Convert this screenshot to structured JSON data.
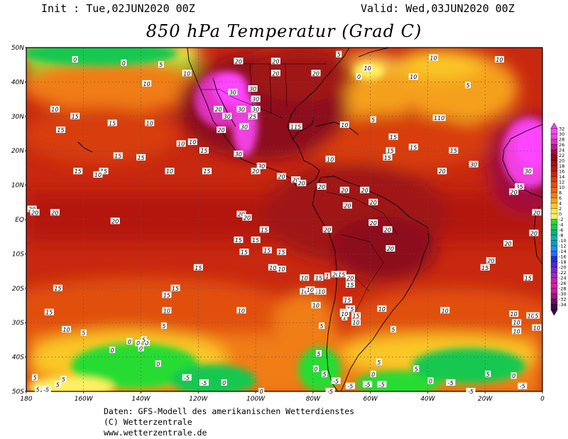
{
  "header": {
    "init": "Init : Tue,02JUN2020 00Z",
    "valid": "Valid: Wed,03JUN2020 00Z",
    "title": "850 hPa Temperatur (Grad C)"
  },
  "axes": {
    "lat_labels": [
      "50N",
      "40N",
      "30N",
      "20N",
      "10N",
      "EQ",
      "10S",
      "20S",
      "30S",
      "40S",
      "50S"
    ],
    "lon_labels": [
      "180",
      "160W",
      "140W",
      "120W",
      "100W",
      "80W",
      "60W",
      "40W",
      "20W",
      "0"
    ]
  },
  "legend": {
    "levels": [
      "32",
      "30",
      "28",
      "26",
      "24",
      "22",
      "20",
      "18",
      "16",
      "14",
      "12",
      "10",
      "8",
      "6",
      "4",
      "2",
      "0",
      "-2",
      "-4",
      "-6",
      "-8",
      "-10",
      "-12",
      "-14",
      "-16",
      "-18",
      "-20",
      "-22",
      "-24",
      "-26",
      "-28",
      "-30",
      "-32",
      "-34"
    ],
    "colors": [
      "#ff44ff",
      "#f040e0",
      "#e030c0",
      "#c8168c",
      "#a00a3c",
      "#8c0a1e",
      "#a01414",
      "#b4190f",
      "#c8280f",
      "#d73c0f",
      "#e1500f",
      "#eb6414",
      "#f07d19",
      "#f5a01e",
      "#fac828",
      "#ffe650",
      "#fff064",
      "#28dc32",
      "#14c850",
      "#0ab46e",
      "#00b4b4",
      "#00a0d2",
      "#1e8cf0",
      "#3c64f0",
      "#1e32d2",
      "#5028d2",
      "#7828c8",
      "#a028be",
      "#c81eb4",
      "#dc1ea0",
      "#c81e8c",
      "#a01478",
      "#6e0a64",
      "#3c0a46"
    ]
  },
  "map_labels": [
    {
      "t": "0",
      "lon": -163,
      "lat": 46.5
    },
    {
      "t": "0",
      "lon": -146,
      "lat": 45.5
    },
    {
      "t": "5",
      "lon": -133,
      "lat": 45
    },
    {
      "t": "10",
      "lon": -124,
      "lat": 42.5
    },
    {
      "t": "10",
      "lon": -138,
      "lat": 39.5
    },
    {
      "t": "10",
      "lon": -170,
      "lat": 32
    },
    {
      "t": "15",
      "lon": -163,
      "lat": 30
    },
    {
      "t": "15",
      "lon": -150,
      "lat": 28
    },
    {
      "t": "15",
      "lon": -168,
      "lat": 26
    },
    {
      "t": "10",
      "lon": -137,
      "lat": 28
    },
    {
      "t": "10",
      "lon": -126,
      "lat": 22
    },
    {
      "t": "10",
      "lon": -122,
      "lat": 22.5
    },
    {
      "t": "15",
      "lon": -118,
      "lat": 20
    },
    {
      "t": "15",
      "lon": -148,
      "lat": 18.5
    },
    {
      "t": "15",
      "lon": -140,
      "lat": 18
    },
    {
      "t": "10",
      "lon": -130,
      "lat": 14
    },
    {
      "t": "15",
      "lon": -117,
      "lat": 14
    },
    {
      "t": "15",
      "lon": -162,
      "lat": 14
    },
    {
      "t": "15",
      "lon": -153,
      "lat": 14
    },
    {
      "t": "10",
      "lon": -155,
      "lat": 13
    },
    {
      "t": "20",
      "lon": -106,
      "lat": 46
    },
    {
      "t": "20",
      "lon": -93,
      "lat": 46
    },
    {
      "t": "20",
      "lon": -93,
      "lat": 42.5
    },
    {
      "t": "20",
      "lon": -79,
      "lat": 42.5
    },
    {
      "t": "30",
      "lon": -108,
      "lat": 37
    },
    {
      "t": "30",
      "lon": -101,
      "lat": 38
    },
    {
      "t": "30",
      "lon": -100,
      "lat": 35
    },
    {
      "t": "30",
      "lon": -100,
      "lat": 32
    },
    {
      "t": "30",
      "lon": -105,
      "lat": 32
    },
    {
      "t": "25",
      "lon": -101,
      "lat": 30
    },
    {
      "t": "30",
      "lon": -110,
      "lat": 30
    },
    {
      "t": "30",
      "lon": -104,
      "lat": 27
    },
    {
      "t": "20",
      "lon": -113,
      "lat": 32
    },
    {
      "t": "20",
      "lon": -112,
      "lat": 26
    },
    {
      "t": "30",
      "lon": -106,
      "lat": 19
    },
    {
      "t": "30",
      "lon": -98,
      "lat": 15.5
    },
    {
      "t": "20",
      "lon": -100,
      "lat": 14
    },
    {
      "t": "20",
      "lon": -91,
      "lat": 12.5
    },
    {
      "t": "20",
      "lon": -86,
      "lat": 11.5
    },
    {
      "t": "115",
      "lon": -86,
      "lat": 27
    },
    {
      "t": "5",
      "lon": -71,
      "lat": 48
    },
    {
      "t": "0",
      "lon": -64,
      "lat": 41.5
    },
    {
      "t": "10",
      "lon": -61,
      "lat": 44
    },
    {
      "t": "5",
      "lon": -59,
      "lat": 29
    },
    {
      "t": "10",
      "lon": -69,
      "lat": 27.5
    },
    {
      "t": "10",
      "lon": -74,
      "lat": 17.5
    },
    {
      "t": "15",
      "lon": -52,
      "lat": 24
    },
    {
      "t": "15",
      "lon": -45,
      "lat": 21
    },
    {
      "t": "15",
      "lon": -53,
      "lat": 20
    },
    {
      "t": "15",
      "lon": -54,
      "lat": 18
    },
    {
      "t": "10",
      "lon": -38,
      "lat": 47
    },
    {
      "t": "10",
      "lon": -45,
      "lat": 41.5
    },
    {
      "t": "10",
      "lon": -15,
      "lat": 46.5
    },
    {
      "t": "5",
      "lon": -26,
      "lat": 39
    },
    {
      "t": "110",
      "lon": -36,
      "lat": 29.5
    },
    {
      "t": "15",
      "lon": -31,
      "lat": 20
    },
    {
      "t": "20",
      "lon": -35,
      "lat": 14
    },
    {
      "t": "30",
      "lon": -24,
      "lat": 16
    },
    {
      "t": "30",
      "lon": -5,
      "lat": 14
    },
    {
      "t": "35",
      "lon": -8,
      "lat": 9.5
    },
    {
      "t": "20",
      "lon": -10,
      "lat": 8
    },
    {
      "t": "20",
      "lon": -2,
      "lat": 2
    },
    {
      "t": "20",
      "lon": -3,
      "lat": -4
    },
    {
      "t": "20",
      "lon": -12,
      "lat": -7
    },
    {
      "t": "20",
      "lon": -18,
      "lat": -12
    },
    {
      "t": "15",
      "lon": -20,
      "lat": -14
    },
    {
      "t": "15",
      "lon": -5,
      "lat": -17
    },
    {
      "t": "20",
      "lon": -84,
      "lat": 10.5
    },
    {
      "t": "20",
      "lon": -77,
      "lat": 9.5
    },
    {
      "t": "20",
      "lon": -69,
      "lat": 8.5
    },
    {
      "t": "20",
      "lon": -62,
      "lat": 8.5
    },
    {
      "t": "20",
      "lon": -68,
      "lat": 4
    },
    {
      "t": "20",
      "lon": -59,
      "lat": 5
    },
    {
      "t": "20",
      "lon": -54,
      "lat": -3
    },
    {
      "t": "20",
      "lon": -53,
      "lat": -8.5
    },
    {
      "t": "20",
      "lon": -59,
      "lat": -1
    },
    {
      "t": "20",
      "lon": -105,
      "lat": 1.5
    },
    {
      "t": "20",
      "lon": -103,
      "lat": 0.5
    },
    {
      "t": "20",
      "lon": -149,
      "lat": -0.5
    },
    {
      "t": "20",
      "lon": -170,
      "lat": 2
    },
    {
      "t": "20",
      "lon": -178,
      "lat": 3
    },
    {
      "t": "20",
      "lon": -177,
      "lat": 2
    },
    {
      "t": "20",
      "lon": -75,
      "lat": -3
    },
    {
      "t": "15",
      "lon": -97,
      "lat": -3
    },
    {
      "t": "15",
      "lon": -100,
      "lat": -6
    },
    {
      "t": "15",
      "lon": -96,
      "lat": -9
    },
    {
      "t": "15",
      "lon": -91,
      "lat": -9.5
    },
    {
      "t": "15",
      "lon": -106,
      "lat": -6
    },
    {
      "t": "15",
      "lon": -104,
      "lat": -9.5
    },
    {
      "t": "10",
      "lon": -94,
      "lat": -14
    },
    {
      "t": "10",
      "lon": -91,
      "lat": -14.5
    },
    {
      "t": "15",
      "lon": -120,
      "lat": -14
    },
    {
      "t": "15",
      "lon": -128,
      "lat": -20
    },
    {
      "t": "15",
      "lon": -131,
      "lat": -22
    },
    {
      "t": "15",
      "lon": -169,
      "lat": -20
    },
    {
      "t": "15",
      "lon": -172,
      "lat": -27
    },
    {
      "t": "10",
      "lon": -131,
      "lat": -26.5
    },
    {
      "t": "10",
      "lon": -83,
      "lat": -17
    },
    {
      "t": "15",
      "lon": -78,
      "lat": -17
    },
    {
      "t": "1",
      "lon": -75,
      "lat": -16.5
    },
    {
      "t": "20",
      "lon": -72,
      "lat": -16
    },
    {
      "t": "15",
      "lon": -70,
      "lat": -16
    },
    {
      "t": "20",
      "lon": -67,
      "lat": -17
    },
    {
      "t": "15",
      "lon": -67,
      "lat": -19
    },
    {
      "t": "10",
      "lon": -83,
      "lat": -21
    },
    {
      "t": "10",
      "lon": -78,
      "lat": -21
    },
    {
      "t": "10",
      "lon": -81,
      "lat": -20.5
    },
    {
      "t": "10",
      "lon": -77,
      "lat": -21
    },
    {
      "t": "15",
      "lon": -68,
      "lat": -23.5
    },
    {
      "t": "15",
      "lon": -67,
      "lat": -26
    },
    {
      "t": "10",
      "lon": -69,
      "lat": -27
    },
    {
      "t": "1",
      "lon": -69,
      "lat": -28.5
    },
    {
      "t": "15",
      "lon": -65,
      "lat": -28
    },
    {
      "t": "10",
      "lon": -65,
      "lat": -30
    },
    {
      "t": "10",
      "lon": -105,
      "lat": -26.5
    },
    {
      "t": "10",
      "lon": -79,
      "lat": -25
    },
    {
      "t": "10",
      "lon": -69,
      "lat": -27.5
    },
    {
      "t": "5",
      "lon": -77,
      "lat": -31
    },
    {
      "t": "5",
      "lon": -52,
      "lat": -32
    },
    {
      "t": "10",
      "lon": -56,
      "lat": -26
    },
    {
      "t": "10",
      "lon": -34,
      "lat": -26.5
    },
    {
      "t": "10",
      "lon": -10,
      "lat": -27.5
    },
    {
      "t": "10",
      "lon": -4,
      "lat": -28
    },
    {
      "t": "10",
      "lon": -9,
      "lat": -30
    },
    {
      "t": "10",
      "lon": -2,
      "lat": -31.5
    },
    {
      "t": "10",
      "lon": -9,
      "lat": -32.5
    },
    {
      "t": "5",
      "lon": -2,
      "lat": -28
    },
    {
      "t": "5",
      "lon": -132,
      "lat": -31
    },
    {
      "t": "10",
      "lon": -166,
      "lat": -32
    },
    {
      "t": "5",
      "lon": -160,
      "lat": -33
    },
    {
      "t": "0",
      "lon": -144,
      "lat": -35.5
    },
    {
      "t": "0",
      "lon": -141,
      "lat": -36
    },
    {
      "t": "0",
      "lon": -138,
      "lat": -36
    },
    {
      "t": "5",
      "lon": -139,
      "lat": -35
    },
    {
      "t": "0",
      "lon": -140,
      "lat": -37.5
    },
    {
      "t": "0",
      "lon": -134,
      "lat": -42
    },
    {
      "t": "0",
      "lon": -150,
      "lat": -38
    },
    {
      "t": "5",
      "lon": -78,
      "lat": -39
    },
    {
      "t": "0",
      "lon": -79,
      "lat": -43.5
    },
    {
      "t": "5",
      "lon": -76,
      "lat": -45
    },
    {
      "t": "0",
      "lon": -59,
      "lat": -45
    },
    {
      "t": "5",
      "lon": -57,
      "lat": -41.5
    },
    {
      "t": "5",
      "lon": -44,
      "lat": -43.5
    },
    {
      "t": "0",
      "lon": -39,
      "lat": -47
    },
    {
      "t": "-5",
      "lon": -32,
      "lat": -47.5
    },
    {
      "t": "5",
      "lon": -19,
      "lat": -45
    },
    {
      "t": "0",
      "lon": -10,
      "lat": -45.5
    },
    {
      "t": "-5",
      "lon": -7,
      "lat": -48.5
    },
    {
      "t": "-5",
      "lon": -25,
      "lat": -50
    },
    {
      "t": "-5",
      "lon": -74,
      "lat": -50
    },
    {
      "t": "-5",
      "lon": -67,
      "lat": -48.5
    },
    {
      "t": "-5",
      "lon": -61,
      "lat": -48
    },
    {
      "t": "-5",
      "lon": -56,
      "lat": -48
    },
    {
      "t": "-5",
      "lon": -118,
      "lat": -47.5
    },
    {
      "t": "0",
      "lon": -111,
      "lat": -47.5
    },
    {
      "t": "0",
      "lon": -98,
      "lat": -50
    },
    {
      "t": "-5",
      "lon": -124,
      "lat": -46
    },
    {
      "t": "5",
      "lon": -177,
      "lat": -46
    },
    {
      "t": "5",
      "lon": -169,
      "lat": -48
    },
    {
      "t": "5",
      "lon": -167,
      "lat": -46.5
    },
    {
      "t": "-5",
      "lon": -173,
      "lat": -49.5
    },
    {
      "t": "5",
      "lon": -176,
      "lat": -49.5
    },
    {
      "t": "-5",
      "lon": -72,
      "lat": -47
    }
  ],
  "footer": {
    "line1": "Daten: GFS-Modell des amerikanischen Wetterdienstes",
    "line2": "(C) Wetterzentrale",
    "line3": "www.wetterzentrale.de"
  }
}
